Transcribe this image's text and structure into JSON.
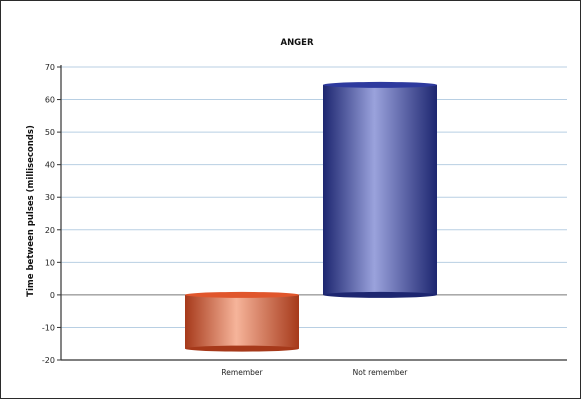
{
  "chart_data": {
    "type": "bar",
    "title": "ANGER",
    "xlabel": "",
    "ylabel": "Time between pulses (milliseconds)",
    "categories": [
      "Remember",
      "Not remember"
    ],
    "values": [
      -16.5,
      64.5
    ],
    "ylim": [
      -20,
      70
    ],
    "yticks": [
      70,
      60,
      50,
      40,
      30,
      20,
      10,
      0,
      -10,
      -20
    ],
    "grid": true,
    "legend": "none",
    "colors": {
      "bars": [
        "#e0562c",
        "#2e3a9e"
      ],
      "bar_highlights": [
        "#f6b49a",
        "#9aa2dc"
      ],
      "bar_dark": [
        "#a6391a",
        "#1d2670"
      ],
      "gridline": "#b8cfe3",
      "axis": "#333333"
    }
  }
}
